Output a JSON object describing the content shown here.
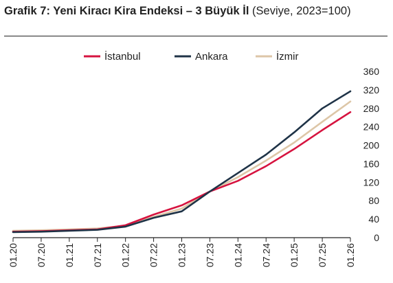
{
  "figure": {
    "title_bold": "Grafik 7: Yeni Kiracı Kira Endeksi – 3 Büyük İl",
    "title_rest": " (Seviye, 2023=100)"
  },
  "chart_data": {
    "type": "line",
    "title": "Grafik 7: Yeni Kiracı Kira Endeksi – 3 Büyük İl (Seviye, 2023=100)",
    "xlabel": "",
    "ylabel": "",
    "ylim": [
      0,
      360
    ],
    "yticks": [
      0,
      40,
      80,
      120,
      160,
      200,
      240,
      280,
      320,
      360
    ],
    "y_axis_position": "right",
    "grid": false,
    "legend_position": "top",
    "x_tick_labels": [
      "01.20",
      "07.20",
      "01.21",
      "07.21",
      "01.22",
      "07.22",
      "01.23",
      "07.23",
      "01.24",
      "07.24",
      "01.25",
      "07.25",
      "01.26"
    ],
    "x": [
      "01.20",
      "07.20",
      "01.21",
      "07.21",
      "01.22",
      "07.22",
      "01.23",
      "07.23",
      "01.24",
      "07.24",
      "01.25",
      "07.25",
      "01.26"
    ],
    "series": [
      {
        "name": "İstanbul",
        "color": "#d6133f",
        "values": [
          13,
          14,
          16,
          18,
          27,
          50,
          70,
          100,
          123,
          155,
          192,
          233,
          272
        ]
      },
      {
        "name": "Ankara",
        "color": "#1f3347",
        "values": [
          12,
          13,
          15,
          17,
          24,
          43,
          57,
          100,
          140,
          180,
          228,
          280,
          317
        ]
      },
      {
        "name": "İzmir",
        "color": "#ddc6a7",
        "values": [
          15,
          16,
          18,
          20,
          26,
          45,
          63,
          100,
          131,
          167,
          206,
          251,
          295
        ]
      }
    ]
  }
}
